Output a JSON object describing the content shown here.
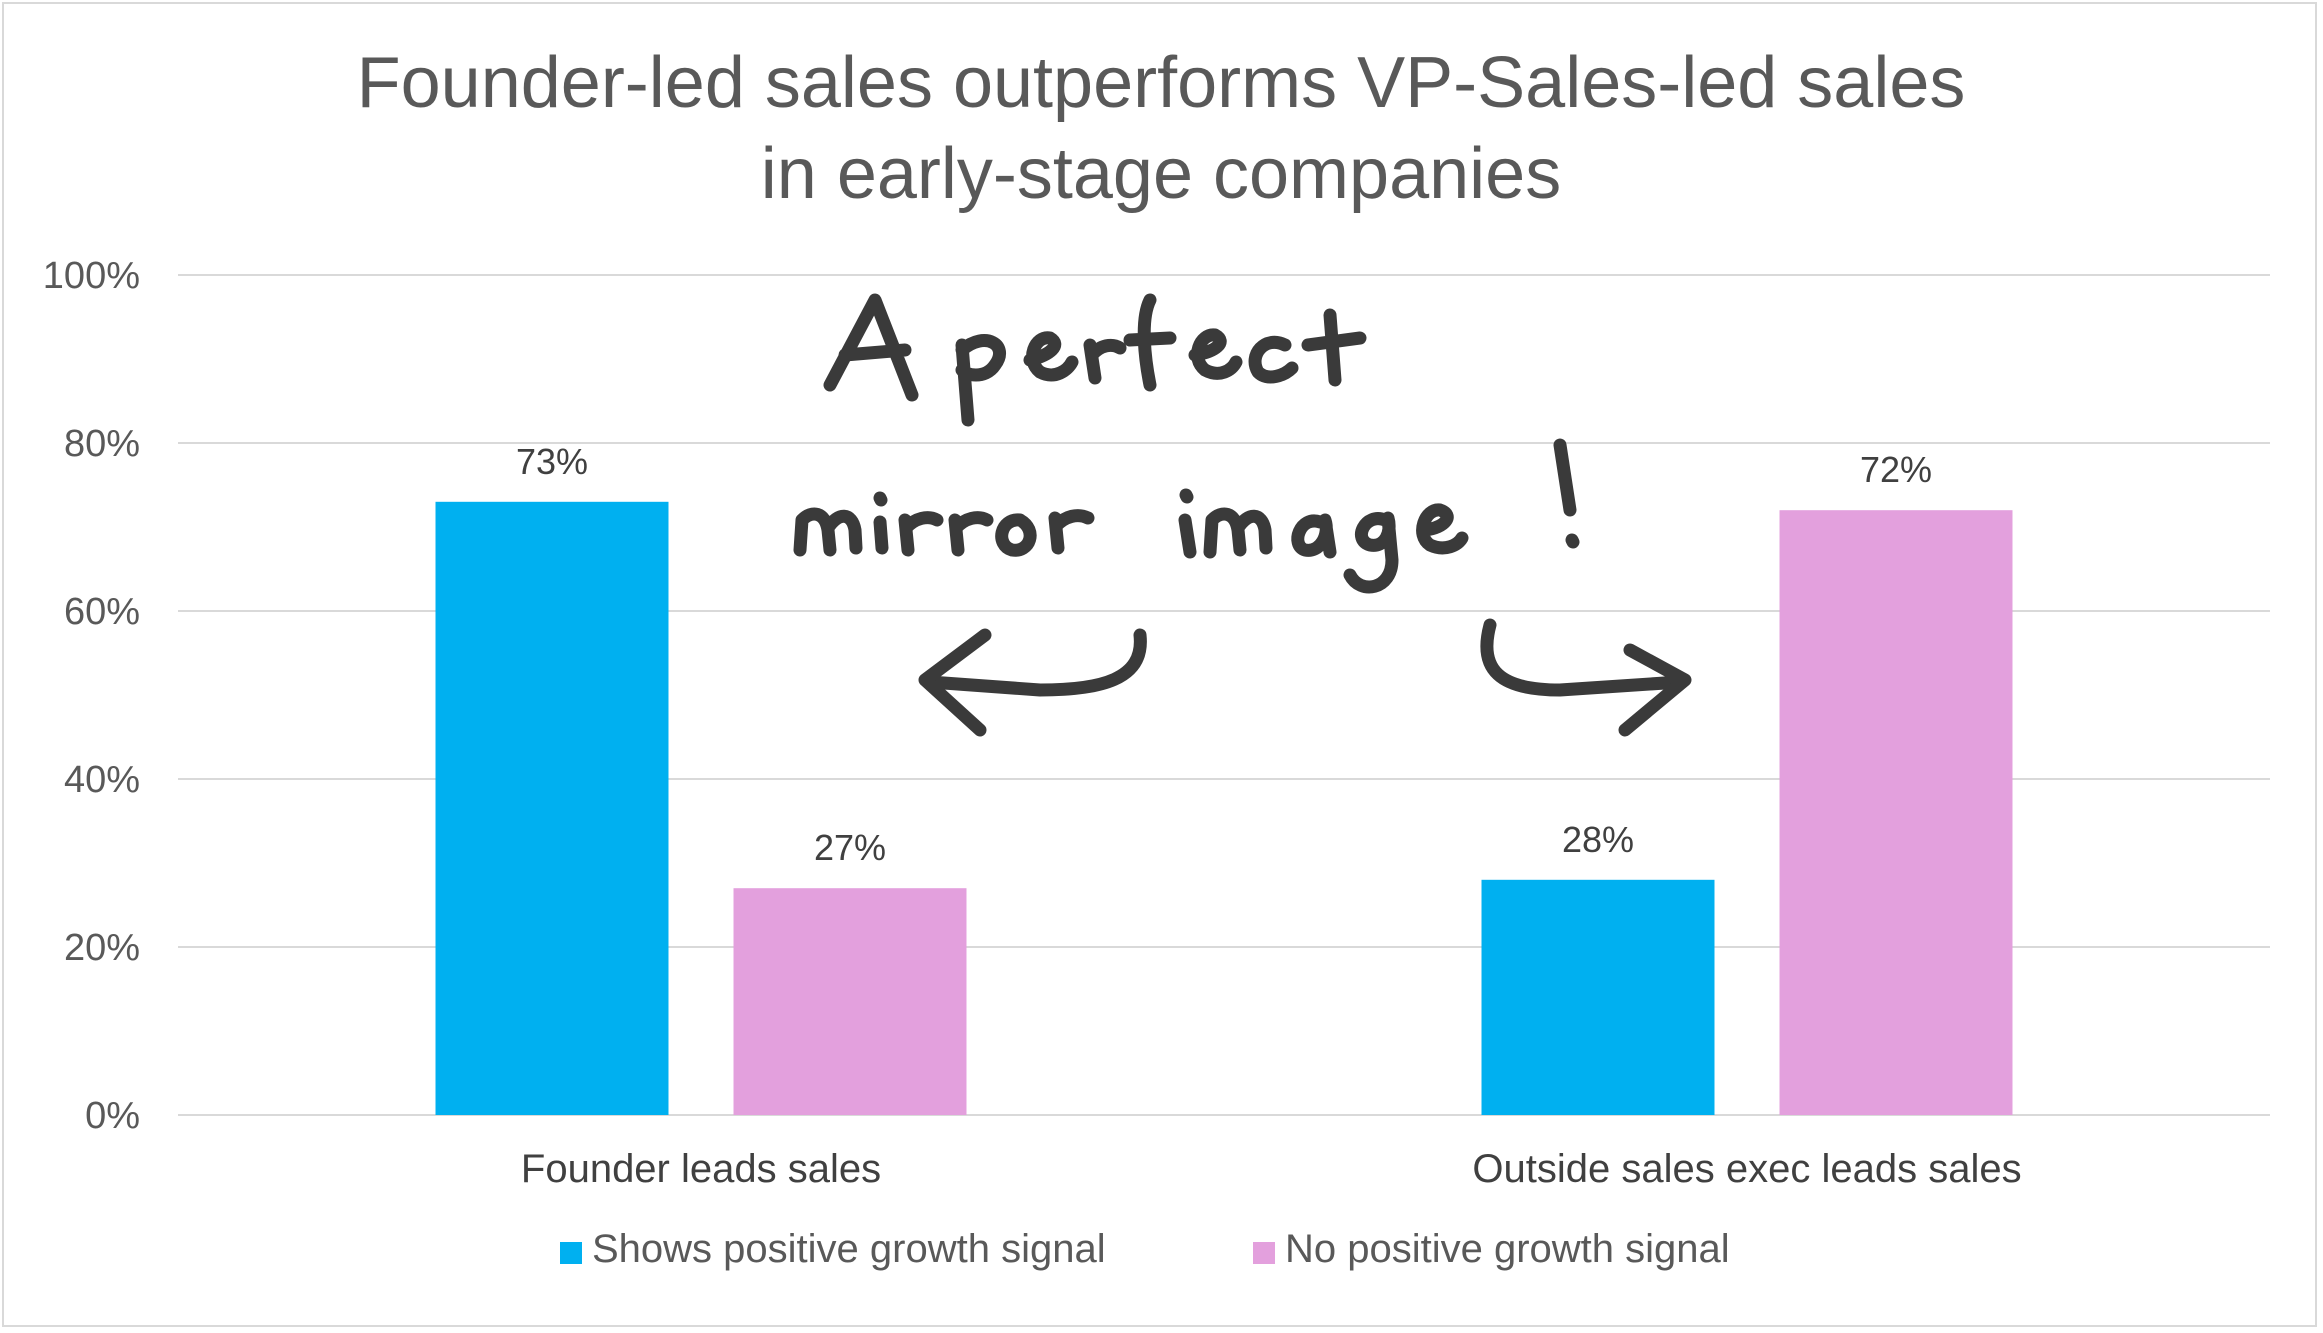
{
  "colors": {
    "series_positive": "#00B0F0",
    "series_negative": "#E3A0DD",
    "gridline": "#d9d9d9",
    "ink": "#3a3a3a"
  },
  "annotation": {
    "line1": "A perfect",
    "line2": "mirror image!"
  },
  "chart_data": {
    "type": "bar",
    "title": "Founder-led sales outperforms VP-Sales-led sales in early-stage companies",
    "title_lines": [
      "Founder-led sales outperforms VP-Sales-led sales",
      "in early-stage companies"
    ],
    "categories": [
      "Founder leads sales",
      "Outside sales exec leads sales"
    ],
    "series": [
      {
        "name": "Shows positive growth signal",
        "values": [
          73,
          28
        ],
        "labels": [
          "73%",
          "28%"
        ],
        "color": "#00B0F0"
      },
      {
        "name": "No positive growth signal",
        "values": [
          27,
          72
        ],
        "labels": [
          "27%",
          "72%"
        ],
        "color": "#E3A0DD"
      }
    ],
    "ylim": [
      0,
      100
    ],
    "yticks": [
      "0%",
      "20%",
      "40%",
      "60%",
      "80%",
      "100%"
    ],
    "grid": true,
    "legend": "bottom",
    "xlabel": "",
    "ylabel": ""
  }
}
